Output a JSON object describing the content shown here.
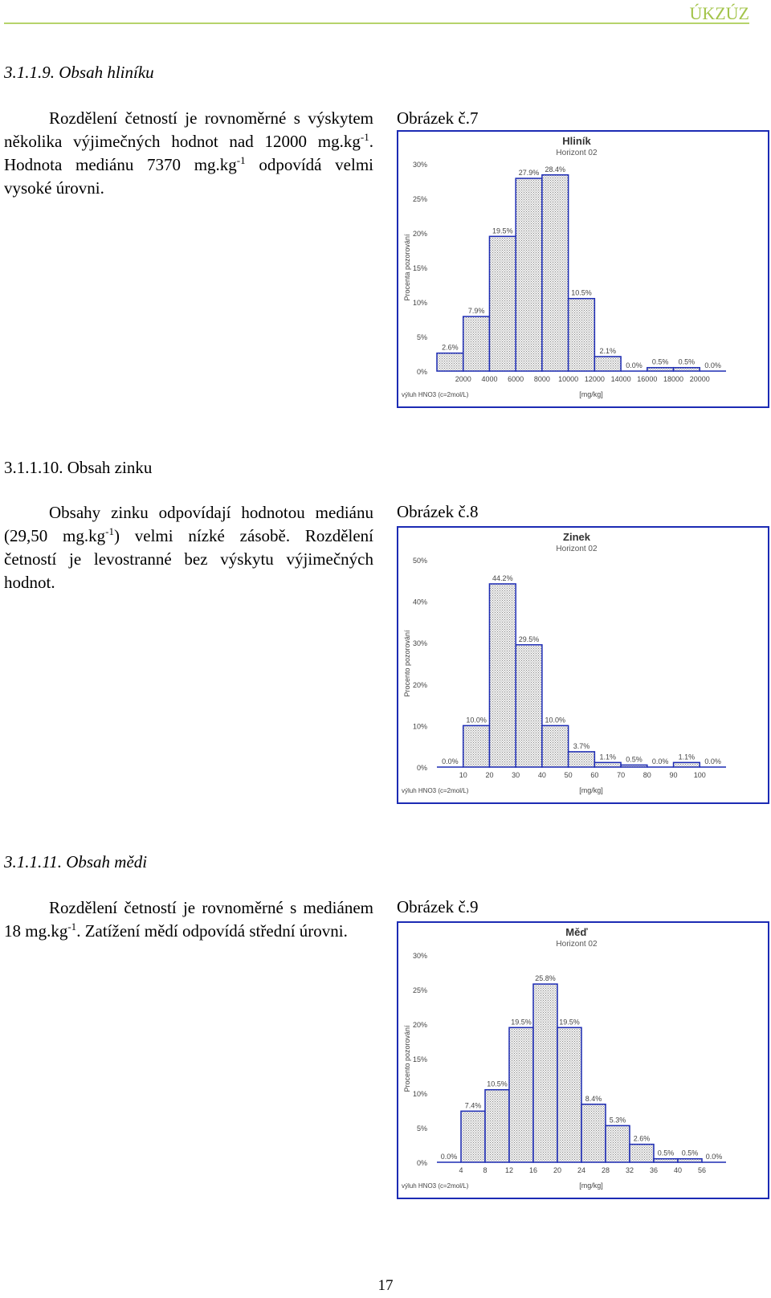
{
  "header": {
    "brand": "ÚKZÚZ"
  },
  "sections": [
    {
      "title": "3.1.1.9. Obsah hliníku",
      "paragraph": [
        {
          "t": "Rozdělení četností je rovnoměrné s výskytem několika výjimečných hodnot nad 12000 mg.kg"
        },
        {
          "sup": "-1"
        },
        {
          "t": ". Hodnota mediánu 7370 mg.kg"
        },
        {
          "sup": "-1"
        },
        {
          "t": " odpovídá velmi vysoké úrovni."
        }
      ],
      "figure_label": "Obrázek č.7"
    },
    {
      "title": "3.1.1.10. Obsah zinku",
      "paragraph": [
        {
          "t": "Obsahy zinku odpovídají hodnotou mediánu (29,50 mg.kg"
        },
        {
          "sup": "-1"
        },
        {
          "t": ") velmi nízké zásobě. Rozdělení četností je levostranné bez výskytu výjimečných hodnot."
        }
      ],
      "figure_label": "Obrázek č.8"
    },
    {
      "title": "3.1.1.11. Obsah mědi",
      "paragraph": [
        {
          "t": "Rozdělení četností je rovnoměrné s mediánem 18 mg.kg"
        },
        {
          "sup": "-1"
        },
        {
          "t": ". Zatížení mědí odpovídá střední úrovni."
        }
      ],
      "figure_label": "Obrázek č.9"
    }
  ],
  "chart_data": [
    {
      "type": "bar",
      "title": "Hliník",
      "subtitle": "Horizont 02",
      "ylabel": "Procenta pozorování",
      "xlabel": "[mg/kg]",
      "footnote": "výluh HNO3 (c=2mol/L)",
      "ylim": [
        0,
        30
      ],
      "yticks": [
        "0%",
        "5%",
        "10%",
        "15%",
        "20%",
        "25%",
        "30%"
      ],
      "x_ticks": [
        "2000",
        "4000",
        "6000",
        "8000",
        "10000",
        "12000",
        "14000",
        "16000",
        "18000",
        "20000"
      ],
      "bar_edges": [
        0,
        2000,
        4000,
        6000,
        8000,
        10000,
        12000,
        14000,
        16000,
        18000,
        20000,
        22000
      ],
      "values": [
        2.6,
        7.9,
        19.5,
        27.9,
        28.4,
        10.5,
        2.1,
        0.0,
        0.5,
        0.5,
        0.0
      ],
      "value_labels": [
        "2.6%",
        "7.9%",
        "19.5%",
        "27.9%",
        "28.4%",
        "10.5%",
        "2.1%",
        "0.0%",
        "0.5%",
        "0.5%",
        "0.0%"
      ]
    },
    {
      "type": "bar",
      "title": "Zinek",
      "subtitle": "Horizont 02",
      "ylabel": "Procento pozorování",
      "xlabel": "[mg/kg]",
      "footnote": "výluh HNO3 (c=2mol/L)",
      "ylim": [
        0,
        50
      ],
      "yticks": [
        "0%",
        "10%",
        "20%",
        "30%",
        "40%",
        "50%"
      ],
      "x_ticks": [
        "10",
        "20",
        "30",
        "40",
        "50",
        "60",
        "70",
        "80",
        "90",
        "100"
      ],
      "bar_edges": [
        0,
        10,
        20,
        30,
        40,
        50,
        60,
        70,
        80,
        90,
        100,
        110
      ],
      "values": [
        0.0,
        10.0,
        44.2,
        29.5,
        10.0,
        3.7,
        1.1,
        0.5,
        0.0,
        1.1,
        0.0
      ],
      "value_labels": [
        "0.0%",
        "10.0%",
        "44.2%",
        "29.5%",
        "10.0%",
        "3.7%",
        "1.1%",
        "0.5%",
        "0.0%",
        "1.1%",
        "0.0%"
      ]
    },
    {
      "type": "bar",
      "title": "Měď",
      "subtitle": "Horizont 02",
      "ylabel": "Procento pozorování",
      "xlabel": "[mg/kg]",
      "footnote": "výluh HNO3 (c=2mol/L)",
      "ylim": [
        0,
        30
      ],
      "yticks": [
        "0%",
        "5%",
        "10%",
        "15%",
        "20%",
        "25%",
        "30%"
      ],
      "x_ticks": [
        "4",
        "8",
        "12",
        "16",
        "20",
        "24",
        "28",
        "32",
        "36",
        "40",
        "56"
      ],
      "bar_edges": [
        0,
        4,
        8,
        12,
        16,
        20,
        24,
        28,
        32,
        36,
        40,
        44,
        48
      ],
      "values": [
        0.0,
        7.4,
        10.5,
        19.5,
        25.8,
        19.5,
        8.4,
        5.3,
        2.6,
        0.5,
        0.5,
        0.0
      ],
      "value_labels": [
        "0.0%",
        "7.4%",
        "10.5%",
        "19.5%",
        "25.8%",
        "19.5%",
        "8.4%",
        "5.3%",
        "2.6%",
        "0.5%",
        "0.5%",
        "0.0%"
      ]
    }
  ],
  "footer": {
    "page_number": "17"
  }
}
